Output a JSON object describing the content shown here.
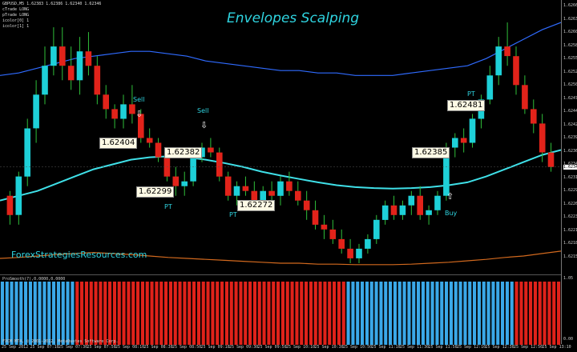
{
  "window": {
    "symbol_line": "GBPUSD,M5  1.62383 1.62386 1.62340 1.62346",
    "info_lines": [
      "cTrade LONG",
      "pTrade LONG",
      "icolor[0] 1",
      "icolor[1] 1"
    ],
    "title": "Envelopes Scalping",
    "watermark": "ForexStrategiesResources.com",
    "copyright": "FXCM MT4, © 2001-2012, MetaQuotes Software Corp.",
    "indicator_label": "ProSmooth(7),0.0000,0.0000",
    "current_price": "1.62346"
  },
  "colors": {
    "bull": "#1ed0d8",
    "bear": "#e2231a",
    "upper_band": "#2f6bff",
    "lower_band": "#d2691e",
    "mid_line": "#3fe0e8",
    "ind_blue": "#3aa8e8",
    "ind_red": "#e0221a"
  },
  "price_axis": [
    "1.62660",
    "1.62635",
    "1.62605",
    "1.62580",
    "1.62555",
    "1.62525",
    "1.62500",
    "1.62475",
    "1.62445",
    "1.62420",
    "1.62395",
    "1.62365",
    "1.62340",
    "1.62315",
    "1.62290",
    "1.62260",
    "1.62235",
    "1.62210",
    "1.62180",
    "1.62155"
  ],
  "ind_axis": [
    "1.05",
    "0.00"
  ],
  "time_axis": [
    "25 Sep 2012",
    "25 Sep 07:10",
    "25 Sep 07:30",
    "25 Sep 07:50",
    "25 Sep 08:10",
    "25 Sep 08:30",
    "25 Sep 08:50",
    "25 Sep 09:10",
    "25 Sep 09:30",
    "25 Sep 09:50",
    "25 Sep 10:10",
    "25 Sep 10:30",
    "25 Sep 10:50",
    "25 Sep 11:10",
    "25 Sep 11:30",
    "25 Sep 11:50",
    "25 Sep 12:10",
    "25 Sep 12:30",
    "25 Sep 12:50",
    "25 Sep 13:10"
  ],
  "price_labels": [
    "1.62404",
    "1.62382",
    "1.62299",
    "1.62272",
    "1.62385",
    "1.62481"
  ],
  "trade_labels": {
    "sell1": "Sell",
    "sell2": "Sell",
    "pt1": "PT",
    "pt2": "PT",
    "pt3": "PT",
    "buy": "Buy"
  },
  "arrow_icons": [
    "down-arrow-icon",
    "down-arrow-icon",
    "up-arrow-icon"
  ],
  "chart_data": {
    "type": "candlestick",
    "candles_ohlc": [
      [
        1.6229,
        1.623,
        1.6223,
        1.6225
      ],
      [
        1.6225,
        1.6234,
        1.6223,
        1.6233
      ],
      [
        1.6233,
        1.6245,
        1.6231,
        1.6243
      ],
      [
        1.6243,
        1.6253,
        1.624,
        1.625
      ],
      [
        1.625,
        1.626,
        1.6248,
        1.6256
      ],
      [
        1.6256,
        1.6264,
        1.6254,
        1.626
      ],
      [
        1.626,
        1.6264,
        1.6253,
        1.6256
      ],
      [
        1.6256,
        1.626,
        1.6251,
        1.6253
      ],
      [
        1.6253,
        1.6262,
        1.625,
        1.6259
      ],
      [
        1.6259,
        1.6263,
        1.6254,
        1.6256
      ],
      [
        1.6256,
        1.6258,
        1.6248,
        1.625
      ],
      [
        1.625,
        1.6252,
        1.6245,
        1.6247
      ],
      [
        1.6247,
        1.6248,
        1.6243,
        1.6245
      ],
      [
        1.6245,
        1.625,
        1.6243,
        1.6248
      ],
      [
        1.6248,
        1.6252,
        1.6244,
        1.6246
      ],
      [
        1.6246,
        1.6247,
        1.624,
        1.6241
      ],
      [
        1.6241,
        1.6243,
        1.6239,
        1.624
      ],
      [
        1.624,
        1.6241,
        1.6236,
        1.6237
      ],
      [
        1.6237,
        1.6239,
        1.6232,
        1.6233
      ],
      [
        1.6233,
        1.6235,
        1.6229,
        1.6231
      ],
      [
        1.6231,
        1.6234,
        1.6229,
        1.6232
      ],
      [
        1.6232,
        1.6238,
        1.6231,
        1.6237
      ],
      [
        1.6237,
        1.624,
        1.6236,
        1.6239
      ],
      [
        1.6239,
        1.6241,
        1.6237,
        1.6238
      ],
      [
        1.6238,
        1.6239,
        1.6232,
        1.6233
      ],
      [
        1.6233,
        1.6234,
        1.6228,
        1.6229
      ],
      [
        1.6229,
        1.6232,
        1.6227,
        1.6231
      ],
      [
        1.6231,
        1.6233,
        1.6229,
        1.623
      ],
      [
        1.623,
        1.6232,
        1.6227,
        1.6228
      ],
      [
        1.6228,
        1.6231,
        1.6226,
        1.623
      ],
      [
        1.623,
        1.6232,
        1.6228,
        1.6229
      ],
      [
        1.6229,
        1.6233,
        1.6227,
        1.6232
      ],
      [
        1.6232,
        1.6234,
        1.6229,
        1.623
      ],
      [
        1.623,
        1.6232,
        1.6227,
        1.6228
      ],
      [
        1.6228,
        1.623,
        1.6224,
        1.6226
      ],
      [
        1.6226,
        1.6228,
        1.6222,
        1.6223
      ],
      [
        1.6223,
        1.6225,
        1.622,
        1.6222
      ],
      [
        1.6222,
        1.6224,
        1.6219,
        1.622
      ],
      [
        1.622,
        1.6222,
        1.6217,
        1.6218
      ],
      [
        1.6218,
        1.622,
        1.6215,
        1.6216
      ],
      [
        1.6216,
        1.6219,
        1.6215,
        1.6218
      ],
      [
        1.6218,
        1.6221,
        1.6217,
        1.622
      ],
      [
        1.622,
        1.6225,
        1.6219,
        1.6224
      ],
      [
        1.6224,
        1.6228,
        1.6223,
        1.6227
      ],
      [
        1.6227,
        1.6229,
        1.6224,
        1.6225
      ],
      [
        1.6225,
        1.6228,
        1.6224,
        1.6227
      ],
      [
        1.6227,
        1.623,
        1.6225,
        1.6229
      ],
      [
        1.6229,
        1.6231,
        1.6224,
        1.6225
      ],
      [
        1.6225,
        1.6227,
        1.6223,
        1.6226
      ],
      [
        1.6226,
        1.623,
        1.6225,
        1.6229
      ],
      [
        1.6229,
        1.624,
        1.6228,
        1.6239
      ],
      [
        1.6239,
        1.6242,
        1.6237,
        1.6241
      ],
      [
        1.6241,
        1.6243,
        1.6238,
        1.624
      ],
      [
        1.624,
        1.6246,
        1.6239,
        1.6245
      ],
      [
        1.6245,
        1.625,
        1.6243,
        1.6249
      ],
      [
        1.6249,
        1.6256,
        1.6248,
        1.6254
      ],
      [
        1.6254,
        1.6262,
        1.6252,
        1.626
      ],
      [
        1.626,
        1.6265,
        1.6256,
        1.6258
      ],
      [
        1.6258,
        1.626,
        1.625,
        1.6252
      ],
      [
        1.6252,
        1.6254,
        1.6246,
        1.6247
      ],
      [
        1.6247,
        1.6249,
        1.6242,
        1.6244
      ],
      [
        1.6244,
        1.6246,
        1.6236,
        1.6238
      ],
      [
        1.6238,
        1.624,
        1.6234,
        1.6235
      ]
    ],
    "upper_band": [
      1.6254,
      1.62545,
      1.62555,
      1.62565,
      1.62575,
      1.6258,
      1.62585,
      1.6259,
      1.6259,
      1.62585,
      1.6258,
      1.6257,
      1.62565,
      1.6256,
      1.62555,
      1.6255,
      1.6255,
      1.62545,
      1.62545,
      1.6254,
      1.6254,
      1.6254,
      1.62545,
      1.6255,
      1.62555,
      1.6256,
      1.62575,
      1.62595,
      1.62615,
      1.62635,
      1.6265
    ],
    "mid_line": [
      1.6228,
      1.6229,
      1.623,
      1.62315,
      1.6233,
      1.62345,
      1.62355,
      1.62365,
      1.6237,
      1.62372,
      1.6237,
      1.62365,
      1.62358,
      1.6235,
      1.6234,
      1.62332,
      1.62325,
      1.62318,
      1.62312,
      1.62308,
      1.62306,
      1.62305,
      1.62306,
      1.62308,
      1.62312,
      1.62318,
      1.6233,
      1.62345,
      1.6236,
      1.62375,
      1.62385
    ],
    "lower_band": [
      1.6216,
      1.62162,
      1.62165,
      1.62168,
      1.6217,
      1.62172,
      1.6217,
      1.62168,
      1.62165,
      1.62162,
      1.6216,
      1.62158,
      1.62156,
      1.62154,
      1.62152,
      1.6215,
      1.6215,
      1.62148,
      1.62148,
      1.62147,
      1.62147,
      1.62147,
      1.62148,
      1.6215,
      1.62152,
      1.62155,
      1.62158,
      1.62162,
      1.62165,
      1.6217,
      1.62175
    ],
    "indicator_bars": [
      "blue",
      "blue",
      "blue",
      "blue",
      "blue",
      "blue",
      "blue",
      "blue",
      "blue",
      "blue",
      "blue",
      "blue",
      "blue",
      "blue",
      "blue",
      "blue",
      "red",
      "red",
      "red",
      "red",
      "red",
      "red",
      "red",
      "red",
      "red",
      "red",
      "red",
      "red",
      "red",
      "red",
      "red",
      "red",
      "red",
      "red",
      "red",
      "red",
      "red",
      "red",
      "red",
      "red",
      "red",
      "red",
      "red",
      "red",
      "red",
      "red",
      "red",
      "red",
      "red",
      "red",
      "red",
      "red",
      "red",
      "red",
      "red",
      "red",
      "red",
      "red",
      "red",
      "red",
      "red",
      "red",
      "red",
      "red",
      "red",
      "red",
      "red",
      "red",
      "red",
      "red",
      "red",
      "red",
      "red",
      "red",
      "blue",
      "blue",
      "blue",
      "blue",
      "blue",
      "blue",
      "blue",
      "blue",
      "blue",
      "blue",
      "blue",
      "blue",
      "blue",
      "blue",
      "blue",
      "blue",
      "blue",
      "blue",
      "blue",
      "blue",
      "blue",
      "blue",
      "blue",
      "blue",
      "blue",
      "blue",
      "blue",
      "blue",
      "blue",
      "blue",
      "blue",
      "blue",
      "blue",
      "blue",
      "blue",
      "blue",
      "red",
      "red",
      "red",
      "red",
      "red",
      "red",
      "red",
      "red",
      "red",
      "red"
    ],
    "ylim": [
      1.6214,
      1.6268
    ]
  }
}
